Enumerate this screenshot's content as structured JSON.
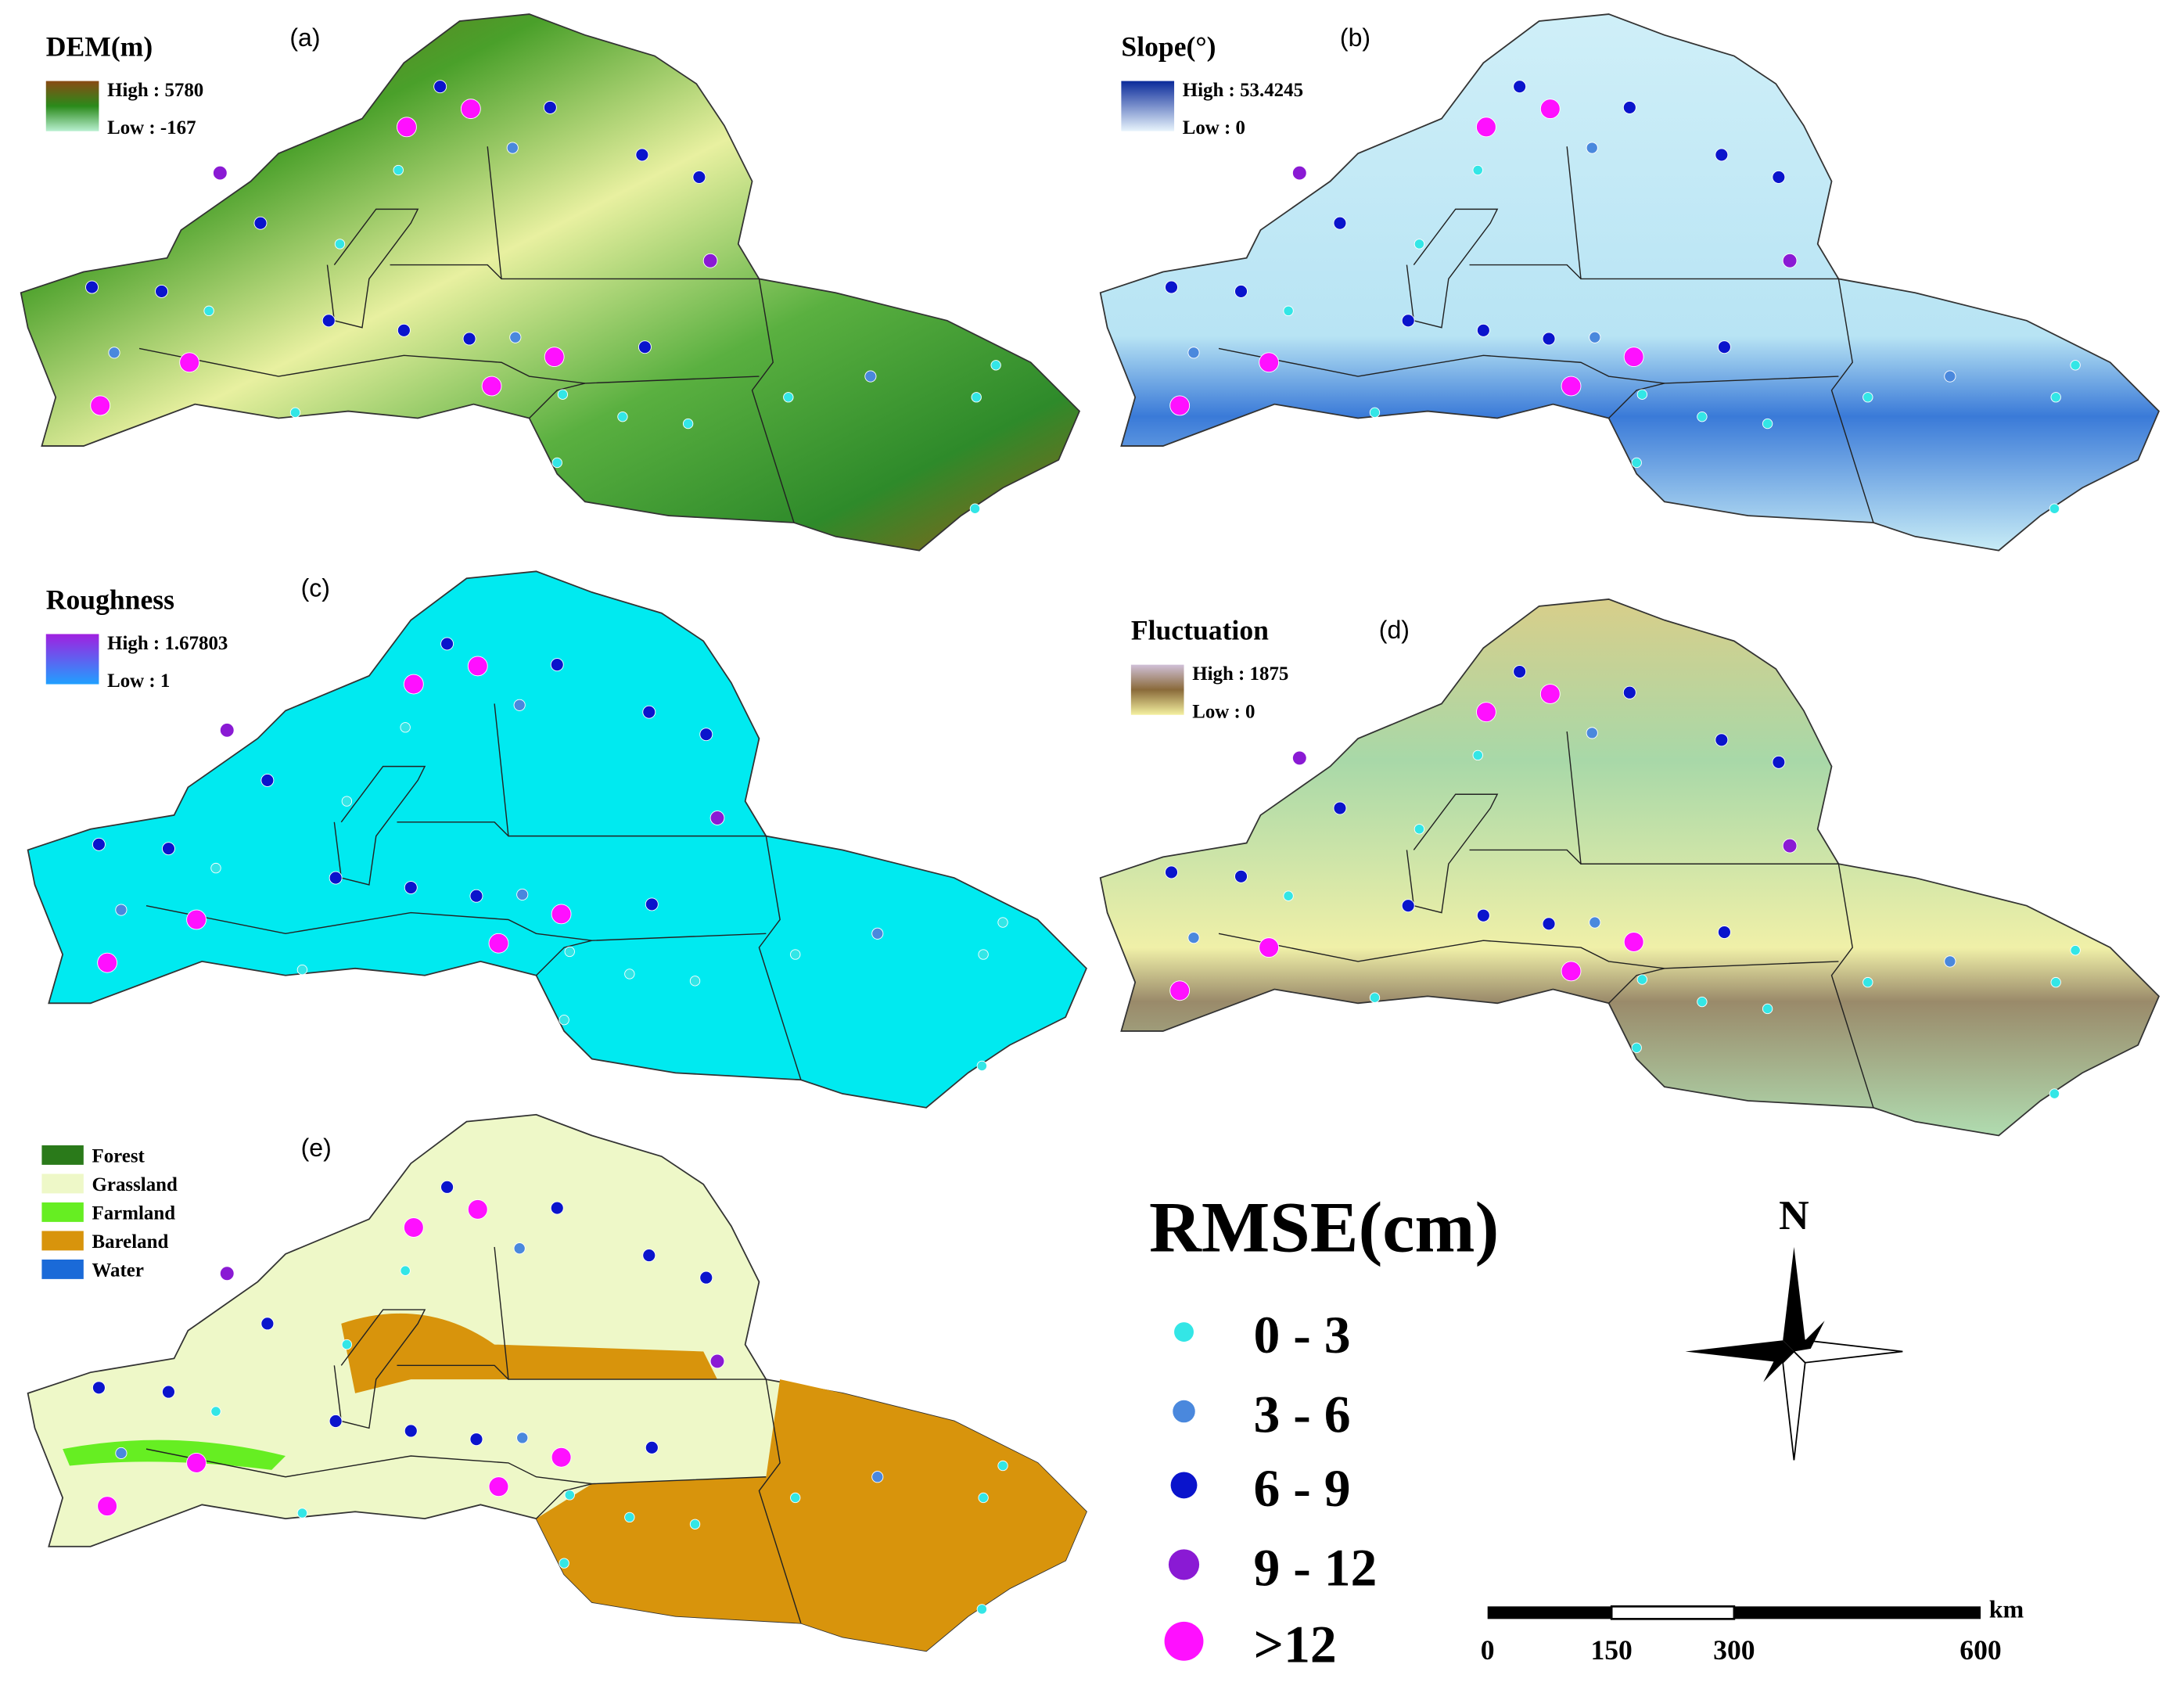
{
  "panels": [
    {
      "label": "(a)",
      "title": "DEM(m)",
      "legend": [
        "High : 5780",
        "Low : -167"
      ]
    },
    {
      "label": "(b)",
      "title": "Slope(°)",
      "legend": [
        "High : 53.4245",
        "Low : 0"
      ]
    },
    {
      "label": "(c)",
      "title": "Roughness",
      "legend": [
        "High : 1.67803",
        "Low : 1"
      ]
    },
    {
      "label": "(d)",
      "title": "Fluctuation",
      "legend": [
        "High : 1875",
        "Low : 0"
      ]
    },
    {
      "label": "(e)",
      "legend": [
        "Forest",
        "Grassland",
        "Farmland",
        "Bareland",
        "Water"
      ]
    }
  ],
  "rmse_legend": {
    "title": "RMSE(cm)",
    "classes": [
      "0 - 3",
      "3 - 6",
      "6 - 9",
      "9 - 12",
      ">12"
    ]
  },
  "north": "N",
  "scale_bar": {
    "unit": "km",
    "labels": [
      "0",
      "150",
      "300",
      "600"
    ]
  }
}
